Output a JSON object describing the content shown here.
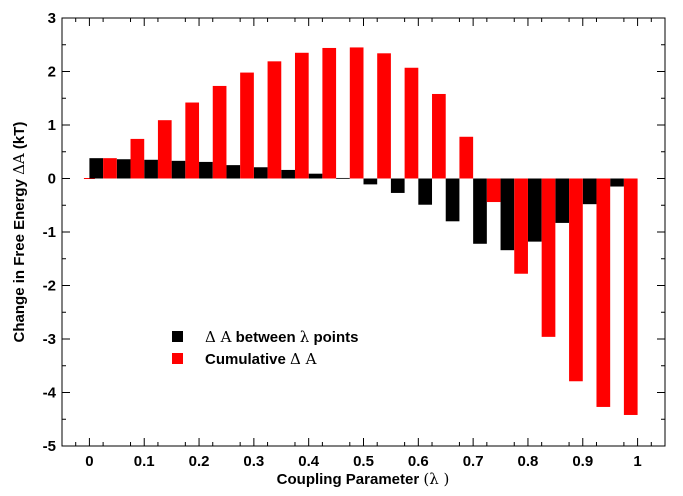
{
  "chart_data": {
    "type": "bar",
    "xlabel_text": "Coupling Parameter",
    "xlabel_symbol": "(λ )",
    "ylabel_text": "Change in Free Energy ",
    "ylabel_symbol": "ΔA",
    "ylabel_unit": " (kT)",
    "xlim": [
      -0.05,
      1.05
    ],
    "ylim": [
      -5,
      3
    ],
    "x_ticks": [
      "0",
      "0.1",
      "0.2",
      "0.3",
      "0.4",
      "0.5",
      "0.6",
      "0.7",
      "0.8",
      "0.9",
      "1"
    ],
    "y_ticks": [
      "3",
      "2",
      "1",
      "0",
      "-1",
      "-2",
      "-3",
      "-4",
      "-5"
    ],
    "legend": {
      "position": "lower-left",
      "entries": [
        {
          "pre": "Δ A",
          "mid": " between ",
          "sym": "λ",
          "post": " points"
        },
        {
          "pre": "Cumulative ",
          "mid": "",
          "sym": "Δ A",
          "post": ""
        }
      ]
    },
    "colors": {
      "between": "#000000",
      "cumulative": "#ff0000"
    },
    "x": [
      0.025,
      0.075,
      0.125,
      0.175,
      0.225,
      0.275,
      0.325,
      0.375,
      0.425,
      0.475,
      0.525,
      0.575,
      0.625,
      0.675,
      0.725,
      0.775,
      0.825,
      0.875,
      0.925,
      0.975
    ],
    "series": [
      {
        "key": "between",
        "values": [
          0.38,
          0.36,
          0.35,
          0.33,
          0.31,
          0.25,
          0.21,
          0.16,
          0.09,
          0.01,
          -0.11,
          -0.27,
          -0.49,
          -0.8,
          -1.22,
          -1.34,
          -1.18,
          -0.83,
          -0.48,
          -0.15
        ]
      },
      {
        "key": "cumulative",
        "values": [
          0.38,
          0.74,
          1.09,
          1.42,
          1.73,
          1.98,
          2.19,
          2.35,
          2.44,
          2.45,
          2.34,
          2.07,
          1.58,
          0.78,
          -0.44,
          -1.78,
          -2.96,
          -3.79,
          -4.27,
          -4.42
        ]
      }
    ],
    "baseline_stub": {
      "x": [
        -0.01,
        0.01
      ],
      "y": 0
    },
    "grid": false
  }
}
